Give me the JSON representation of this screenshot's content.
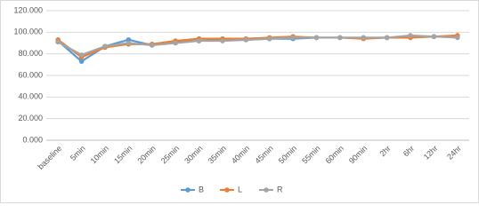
{
  "chart_data": {
    "type": "line",
    "categories": [
      "baseline",
      "5min",
      "10min",
      "15min",
      "20min",
      "25min",
      "30min",
      "35min",
      "40min",
      "45min",
      "50min",
      "55min",
      "60min",
      "90min",
      "2hr",
      "6hr",
      "12hr",
      "24hr"
    ],
    "series": [
      {
        "name": "B",
        "color": "#5b9bd5",
        "values": [
          92,
          73,
          87,
          93,
          88,
          91,
          92,
          93,
          93,
          94,
          94,
          95,
          95,
          95,
          95,
          96,
          96,
          96
        ]
      },
      {
        "name": "L",
        "color": "#ed7d31",
        "values": [
          93,
          77,
          86,
          89,
          89,
          92,
          94,
          94,
          94,
          95,
          96,
          95,
          95,
          94,
          95,
          95,
          96,
          97
        ]
      },
      {
        "name": "R",
        "color": "#a5a5a5",
        "values": [
          91,
          79,
          87,
          90,
          88,
          90,
          92,
          92,
          93,
          94,
          95,
          95,
          95,
          95,
          95,
          97,
          96,
          95
        ]
      }
    ],
    "ylim": [
      0,
      120
    ],
    "yticks": [
      {
        "value": 0,
        "label": "0.000"
      },
      {
        "value": 20,
        "label": "20.000"
      },
      {
        "value": 40,
        "label": "40.000"
      },
      {
        "value": 60,
        "label": "60.000"
      },
      {
        "value": 80,
        "label": "80.000"
      },
      {
        "value": 100,
        "label": "100.000"
      },
      {
        "value": 120,
        "label": "120.000"
      }
    ],
    "grid": true,
    "legend": "bottom"
  }
}
